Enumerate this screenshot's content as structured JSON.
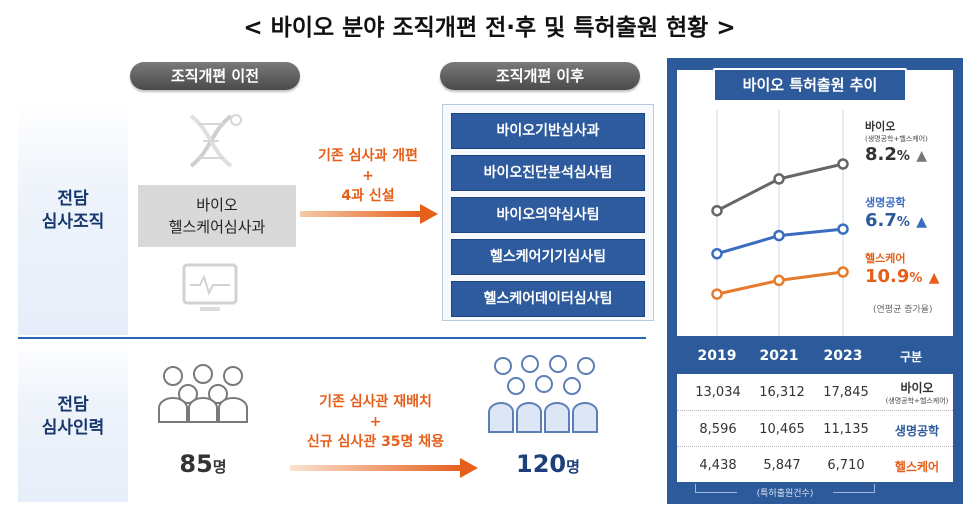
{
  "title": "< 바이오 분야 조직개편 전·후 및 특허출원 현황 >",
  "rows": {
    "org_label_line1": "전담",
    "org_label_line2": "심사조직",
    "staff_label_line1": "전담",
    "staff_label_line2": "심사인력"
  },
  "before": {
    "pill": "조직개편 이전",
    "box_line1": "바이오",
    "box_line2": "헬스케어심사과"
  },
  "after": {
    "pill": "조직개편 이후",
    "teams": [
      "바이오기반심사과",
      "바이오진단분석심사팀",
      "바이오의약심사팀",
      "헬스케어기기심사팀",
      "헬스케어데이터심사팀"
    ]
  },
  "change_org": {
    "line1": "기존 심사과 개편",
    "plus": "+",
    "line2": "4과 신설"
  },
  "change_staff": {
    "line1": "기존 심사관 재배치",
    "plus": "+",
    "line2": "신규 심사관 35명 채용"
  },
  "staff": {
    "before_num": "85",
    "before_unit": "명",
    "after_num": "120",
    "after_unit": "명"
  },
  "trend": {
    "title": "바이오 특허출원 추이",
    "note": "(연평균 증가율)",
    "column_header": "구분",
    "footer": "(특허출원건수)",
    "years": [
      "2019",
      "2021",
      "2023"
    ],
    "series_labels": {
      "bio": "바이오",
      "bio_sub": "(생명공학+헬스케어)",
      "biotech": "생명공학",
      "health": "헬스케어"
    },
    "rates": {
      "bio": "8.2",
      "biotech": "6.7",
      "health": "10.9",
      "unit": "%"
    },
    "table": [
      {
        "name": "바이오",
        "sub": "(생명공학+헬스케어)",
        "values": [
          "13,034",
          "16,312",
          "17,845"
        ]
      },
      {
        "name": "생명공학",
        "sub": "",
        "values": [
          "8,596",
          "10,465",
          "11,135"
        ]
      },
      {
        "name": "헬스케어",
        "sub": "",
        "values": [
          "4,438",
          "5,847",
          "6,710"
        ]
      }
    ]
  },
  "chart_data": {
    "type": "line",
    "title": "바이오 특허출원 추이",
    "x": [
      "2019",
      "2021",
      "2023"
    ],
    "series": [
      {
        "name": "바이오",
        "values": [
          13034,
          16312,
          17845
        ],
        "color": "#666666"
      },
      {
        "name": "생명공학",
        "values": [
          8596,
          10465,
          11135
        ],
        "color": "#3a6cc0"
      },
      {
        "name": "헬스케어",
        "values": [
          4438,
          5847,
          6710
        ],
        "color": "#e67a2e"
      }
    ],
    "grid": true
  },
  "colors": {
    "navy": "#2d5a9a",
    "orange": "#e65f1a",
    "grey_line": "#666666",
    "blue_line": "#3a6cc0"
  }
}
